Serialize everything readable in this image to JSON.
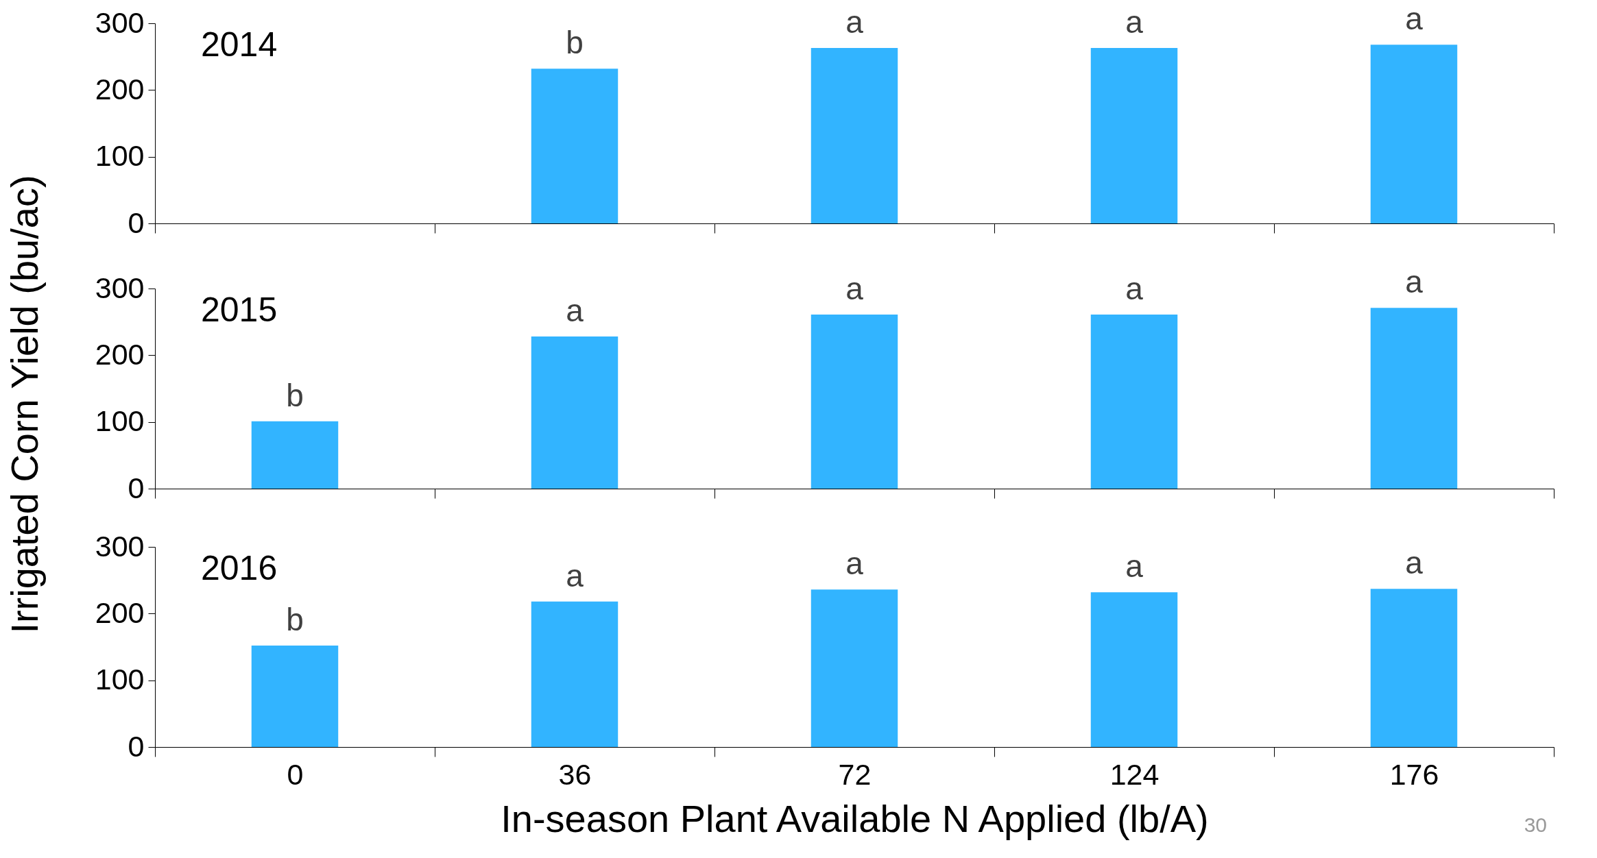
{
  "chart_data": [
    {
      "type": "bar",
      "title": "2014",
      "categories": [
        "0",
        "36",
        "72",
        "124",
        "176"
      ],
      "values": [
        null,
        232,
        263,
        263,
        268
      ],
      "color": "#32b4ff",
      "ylim": [
        0,
        300
      ],
      "yticks": [
        0,
        100,
        200,
        300
      ],
      "tick_labels": "y",
      "annotations": [
        {
          "text": "b",
          "x": "36",
          "y": 232
        },
        {
          "text": "a",
          "x": "72",
          "y": 263
        },
        {
          "text": "a",
          "x": "124",
          "y": 263
        },
        {
          "text": "a",
          "x": "176",
          "y": 268
        }
      ]
    },
    {
      "type": "bar",
      "title": "2015",
      "ylabel": "Irrigated Corn Yield (bu/ac)",
      "categories": [
        "0",
        "36",
        "72",
        "124",
        "176"
      ],
      "values": [
        101,
        228,
        261,
        261,
        271
      ],
      "color": "#32b4ff",
      "ylim": [
        0,
        300
      ],
      "yticks": [
        0,
        100,
        200,
        300
      ],
      "tick_labels": "y",
      "annotations": [
        {
          "text": "b",
          "x": "0",
          "y": 101
        },
        {
          "text": "a",
          "x": "36",
          "y": 228
        },
        {
          "text": "a",
          "x": "72",
          "y": 261
        },
        {
          "text": "a",
          "x": "124",
          "y": 261
        },
        {
          "text": "a",
          "x": "176",
          "y": 271
        }
      ]
    },
    {
      "type": "bar",
      "title": "2016",
      "xlabel": "In-season Plant Available N Applied (lb/A)",
      "categories": [
        "0",
        "36",
        "72",
        "124",
        "176"
      ],
      "values": [
        152,
        218,
        236,
        232,
        237
      ],
      "color": "#32b4ff",
      "ylim": [
        0,
        300
      ],
      "yticks": [
        0,
        100,
        200,
        300
      ],
      "annotations": [
        {
          "text": "b",
          "x": "0",
          "y": 152
        },
        {
          "text": "a",
          "x": "36",
          "y": 218
        },
        {
          "text": "a",
          "x": "72",
          "y": 236
        },
        {
          "text": "a",
          "x": "124",
          "y": 232
        },
        {
          "text": "a",
          "x": "176",
          "y": 237
        },
        "30"
      ]
    }
  ]
}
